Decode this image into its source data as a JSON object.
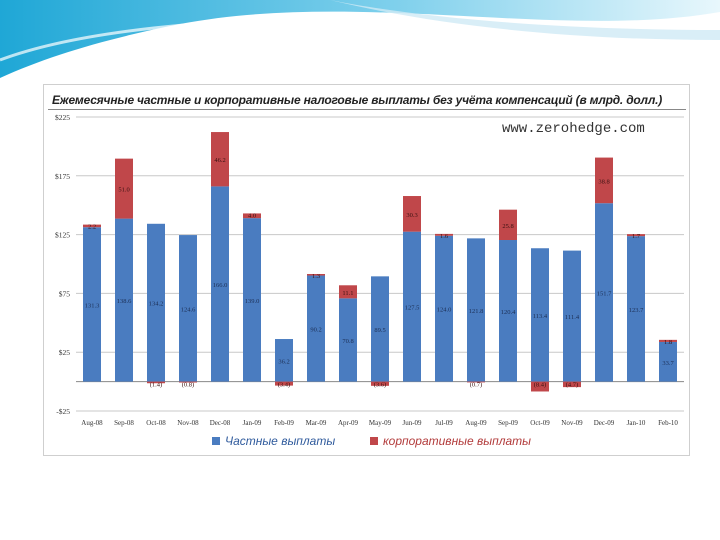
{
  "chart_data": {
    "type": "bar",
    "stacked": true,
    "title": "Ежемесячные частные и корпоративные налоговые выплаты без учёта компенсаций (в млрд. долл.)",
    "watermark": "www.zerohedge.com",
    "categories": [
      "Aug-08",
      "Sep-08",
      "Oct-08",
      "Nov-08",
      "Dec-08",
      "Jan-09",
      "Feb-09",
      "Mar-09",
      "Apr-09",
      "May-09",
      "Jun-09",
      "Jul-09",
      "Aug-09",
      "Sep-09",
      "Oct-09",
      "Nov-09",
      "Dec-09",
      "Jan-10",
      "Feb-10"
    ],
    "y_ticks": [
      "$225",
      "$175",
      "$125",
      "$75",
      "$25",
      "-$25"
    ],
    "ylim": [
      -25,
      225
    ],
    "grid": true,
    "legend_position": "bottom",
    "series": [
      {
        "name": "Частные выплаты",
        "color": "#4a7cc0",
        "values": [
          131.3,
          138.6,
          134.2,
          124.6,
          166.0,
          139.0,
          36.2,
          90.2,
          70.8,
          89.5,
          127.5,
          124.0,
          121.8,
          120.4,
          113.4,
          111.4,
          151.7,
          123.7,
          33.7
        ],
        "labels": [
          "131.3",
          "138.6",
          "134.2",
          "124.6",
          "166.0",
          "139.0",
          "36.2",
          "90.2",
          "70.8",
          "89.5",
          "127.5",
          "124.0",
          "121.8",
          "120.4",
          "113.4",
          "111.4",
          "151.7",
          "123.7",
          "33.7"
        ]
      },
      {
        "name": "корпоративные выплаты",
        "color": "#c0474a",
        "values": [
          2.2,
          51.0,
          -1.4,
          -0.8,
          46.2,
          4.0,
          -3.4,
          1.3,
          11.1,
          -3.6,
          30.3,
          1.6,
          -0.7,
          25.8,
          -8.4,
          -4.7,
          38.8,
          1.7,
          1.8
        ],
        "labels": [
          "2.2",
          "51.0",
          "(1.4)",
          "(0.8)",
          "46.2",
          "4.0",
          "(3.4)",
          "1.3",
          "11.1",
          "(3.6)",
          "30.3",
          "1.6",
          "(0.7)",
          "25.8",
          "(8.4)",
          "(4.7)",
          "38.8",
          "1.7",
          "1.8"
        ]
      }
    ]
  }
}
